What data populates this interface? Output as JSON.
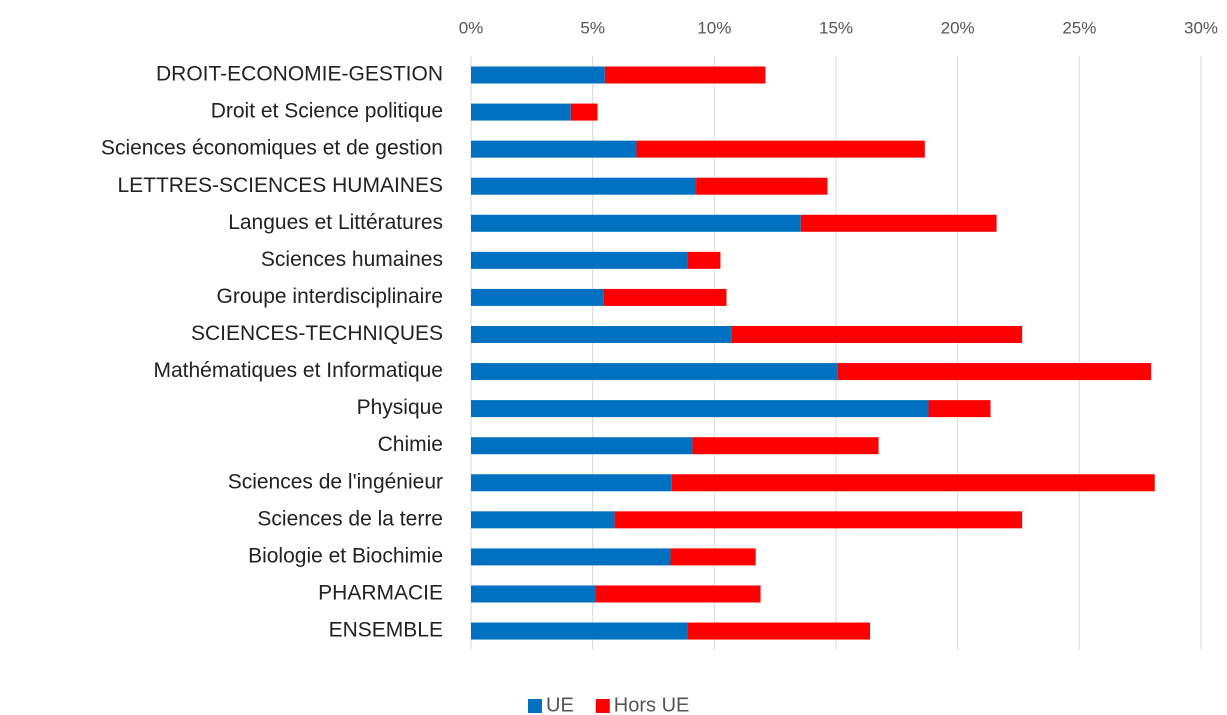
{
  "chart_data": {
    "type": "stacked-barh",
    "categories": [
      "DROIT-ECONOMIE-GESTION",
      "Droit et Science politique",
      "Sciences économiques et de gestion",
      "LETTRES-SCIENCES HUMAINES",
      "Langues et Littératures",
      "Sciences humaines",
      "Groupe interdisciplinaire",
      "SCIENCES-TECHNIQUES",
      "Mathématiques et Informatique",
      "Physique",
      "Chimie",
      "Sciences de l'ingénieur",
      "Sciences de la terre",
      "Biologie et Biochimie",
      "PHARMACIE",
      "ENSEMBLE"
    ],
    "series": [
      {
        "name": "UE",
        "color": "#0070c0",
        "values": [
          5.5,
          4.1,
          6.8,
          9.25,
          13.55,
          8.9,
          5.45,
          10.7,
          15.05,
          18.8,
          9.1,
          8.25,
          5.9,
          8.2,
          5.1,
          8.9
        ]
      },
      {
        "name": "Hors UE",
        "color": "#ff0000",
        "values": [
          6.6,
          1.1,
          11.85,
          5.4,
          8.05,
          1.35,
          5.05,
          11.95,
          12.9,
          2.55,
          7.65,
          19.85,
          16.75,
          3.5,
          6.8,
          7.5
        ]
      }
    ],
    "xlim": [
      0,
      30
    ],
    "xticks": [
      {
        "value": 0,
        "label": "0%"
      },
      {
        "value": 5,
        "label": "5%"
      },
      {
        "value": 10,
        "label": "10%"
      },
      {
        "value": 15,
        "label": "15%"
      },
      {
        "value": 20,
        "label": "20%"
      },
      {
        "value": 25,
        "label": "25%"
      },
      {
        "value": 30,
        "label": "30%"
      }
    ],
    "grid": true,
    "legend": "bottom"
  }
}
